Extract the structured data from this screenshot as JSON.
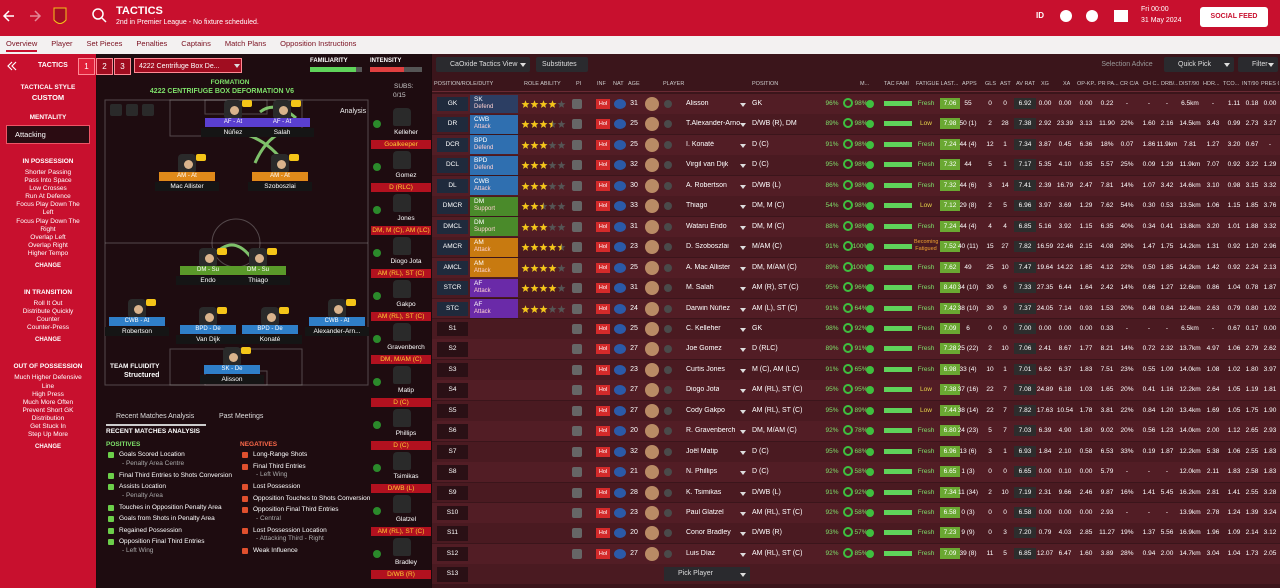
{
  "header": {
    "title": "TACTICS",
    "subtitle": "2nd in Premier League - No fixture scheduled.",
    "user": "ID",
    "time": "Fri 00:00",
    "date": "31 May 2024",
    "social": "SOCIAL FEED"
  },
  "nav": [
    "Overview",
    "Player",
    "Set Pieces",
    "Penalties",
    "Captains",
    "Match Plans",
    "Opposition Instructions"
  ],
  "sidebar": {
    "title": "TACTICS",
    "slots": [
      "1",
      "2",
      "3"
    ],
    "tactic": "4222 Centrifuge Box De...",
    "style_label": "TACTICAL STYLE",
    "style": "CUSTOM",
    "mentality_label": "MENTALITY",
    "mentality": "Attacking",
    "sections": [
      {
        "title": "IN POSSESSION",
        "items": [
          "Shorter Passing",
          "Pass Into Space",
          "Low Crosses",
          "Run At Defence",
          "Focus Play Down The Left",
          "Focus Play Down The Right",
          "Overlap Left",
          "Overlap Right",
          "Higher Tempo"
        ],
        "action": "CHANGE"
      },
      {
        "title": "IN TRANSITION",
        "items": [
          "Roll It Out",
          "Distribute Quickly",
          "Counter",
          "Counter-Press"
        ],
        "action": "CHANGE"
      },
      {
        "title": "OUT OF POSSESSION",
        "items": [
          "Much Higher Defensive Line",
          "High Press",
          "Much More Often",
          "Prevent Short GK Distribution",
          "Get Stuck In",
          "Step Up More"
        ],
        "action": "CHANGE"
      }
    ]
  },
  "formation": {
    "label": "FORMATION",
    "name": "4222 CENTRIFUGE BOX DEFORMATION V6",
    "familiarity": "FAMILIARITY",
    "intensity": "INTENSITY",
    "analysis": "Analysis",
    "fluidity_label": "TEAM FLUIDITY",
    "fluidity": "Structured",
    "players": [
      {
        "role": "AF - At",
        "name": "Núñez",
        "color": "#5a3fd0"
      },
      {
        "role": "AF - At",
        "name": "Salah",
        "color": "#5a3fd0"
      },
      {
        "role": "AM - At",
        "name": "Mac Allister",
        "color": "#e08a1a"
      },
      {
        "role": "AM - At",
        "name": "Szoboszlai",
        "color": "#e08a1a"
      },
      {
        "role": "DM - Su",
        "name": "Endo",
        "color": "#5a9a2a"
      },
      {
        "role": "DM - Su",
        "name": "Thiago",
        "color": "#5a9a2a"
      },
      {
        "role": "CWB - At",
        "name": "Robertson",
        "color": "#2f7fc8"
      },
      {
        "role": "BPD - De",
        "name": "Van Dijk",
        "color": "#2f7fc8"
      },
      {
        "role": "BPD - De",
        "name": "Konaté",
        "color": "#2f7fc8"
      },
      {
        "role": "CWB - At",
        "name": "Alexander-Arn...",
        "color": "#2f7fc8"
      },
      {
        "role": "SK - De",
        "name": "Alisson",
        "color": "#2f7fc8"
      }
    ]
  },
  "subs": {
    "label": "SUBS:",
    "count": "0/15",
    "players": [
      {
        "name": "Kelleher",
        "position": "Goalkeeper"
      },
      {
        "name": "Gomez",
        "position": "D (RLC)"
      },
      {
        "name": "Jones",
        "position": "DM, M (C), AM (LC)"
      },
      {
        "name": "Diogo Jota",
        "position": "AM (RL), ST (C)"
      },
      {
        "name": "Gakpo",
        "position": "AM (RL), ST (C)"
      },
      {
        "name": "Gravenberch",
        "position": "DM, M/AM (C)"
      },
      {
        "name": "Matip",
        "position": "D (C)"
      },
      {
        "name": "Phillips",
        "position": "D (C)"
      },
      {
        "name": "Tsimikas",
        "position": "D/WB (L)"
      },
      {
        "name": "Glatzel",
        "position": "AM (RL), ST (C)"
      },
      {
        "name": "Bradley",
        "position": "D/WB (R)"
      }
    ]
  },
  "analysis": {
    "tabs": [
      "Recent Matches Analysis",
      "Past Meetings"
    ],
    "heading": "RECENT MATCHES ANALYSIS",
    "positives_label": "POSITIVES",
    "negatives_label": "NEGATIVES",
    "positives": [
      {
        "text": "Goals Scored Location",
        "detail": "- Penalty Area Centre"
      },
      {
        "text": "Final Third Entries to Shots Conversion"
      },
      {
        "text": "Assists Location",
        "detail": "- Penalty Area"
      },
      {
        "text": "Touches in Opposition Penalty Area"
      },
      {
        "text": "Goals from Shots in Penalty Area"
      },
      {
        "text": "Regained Possession"
      },
      {
        "text": "Opposition Final Third Entries",
        "detail": "- Left Wing"
      }
    ],
    "negatives": [
      {
        "text": "Long-Range Shots"
      },
      {
        "text": "Final Third Entries",
        "detail": "- Left Wing"
      },
      {
        "text": "Lost Possession"
      },
      {
        "text": "Opposition Touches to Shots Conversion"
      },
      {
        "text": "Opposition Final Third Entries",
        "detail": "- Central"
      },
      {
        "text": "Lost Possession Location",
        "detail": "- Attacking Third - Right"
      },
      {
        "text": "Weak Influence"
      }
    ]
  },
  "toolbar": {
    "view": "CaOxide Tactics View",
    "subs": "Substitutes",
    "advice": "Selection Advice",
    "quick": "Quick Pick",
    "filter": "Filter"
  },
  "table": {
    "columns": [
      "POSITION/ROLE/DUTY",
      "ROLE ABILITY",
      "PI",
      "INF",
      "NAT",
      "AGE",
      "PLAYER",
      "POSITION",
      "M...",
      "TAC FAMI",
      "FATIGUE LAST...",
      "APPS",
      "GLS",
      "AST",
      "AV RAT",
      "XG",
      "XA",
      "OP-KP...",
      "PR PA...",
      "CR C/A",
      "CH C...",
      "DRB/...",
      "DIST/90",
      "HDR...",
      "TCO...",
      "INT/90",
      "PRES C..."
    ],
    "rows": [
      {
        "slot": "GK",
        "role": "SK",
        "duty": "Defend",
        "color": "#2c3e63",
        "stars": 4,
        "inf": "Hol",
        "age": 31,
        "name": "Alisson",
        "position": "GK",
        "cond": "96%",
        "sharp": "98%",
        "fatigue": "Fresh",
        "form": "7.06",
        "stats": [
          "55",
          "0",
          "0",
          "6.92",
          "0.00",
          "0.00",
          "0.00",
          "0.22",
          "-",
          "-",
          "-",
          "6.5km",
          "-",
          "1.11",
          "0.18",
          "0.00"
        ]
      },
      {
        "slot": "DR",
        "role": "CWB",
        "duty": "Attack",
        "color": "#2f6fb0",
        "stars": 3.5,
        "inf": "Hol",
        "age": 25,
        "name": "T.Alexander-Arnold",
        "position": "D/WB (R), DM",
        "cond": "89%",
        "sharp": "98%",
        "fatigue": "Low",
        "form": "7.98",
        "stats": [
          "50 (1)",
          "2",
          "28",
          "7.38",
          "2.92",
          "23.39",
          "3.13",
          "11.90",
          "22%",
          "1.60",
          "2.16",
          "14.5km",
          "3.43",
          "0.99",
          "2.73",
          "3.27"
        ]
      },
      {
        "slot": "DCR",
        "role": "BPD",
        "duty": "Defend",
        "color": "#2f6fb0",
        "stars": 3,
        "inf": "Hol",
        "age": 25,
        "name": "I. Konaté",
        "position": "D (C)",
        "cond": "91%",
        "sharp": "98%",
        "fatigue": "Fresh",
        "form": "7.24",
        "stats": [
          "44 (4)",
          "12",
          "1",
          "7.34",
          "3.87",
          "0.45",
          "6.36",
          "18%",
          "0.07",
          "1.86",
          "11.9km",
          "7.81",
          "1.27",
          "3.20",
          "0.67",
          "-"
        ]
      },
      {
        "slot": "DCL",
        "role": "BPD",
        "duty": "Defend",
        "color": "#2f6fb0",
        "stars": 3,
        "inf": "Hol",
        "age": 32,
        "name": "Virgil van Dijk",
        "position": "D (C)",
        "cond": "95%",
        "sharp": "98%",
        "fatigue": "Fresh",
        "form": "7.32",
        "stats": [
          "44",
          "5",
          "1",
          "7.17",
          "5.35",
          "4.10",
          "0.35",
          "5.57",
          "25%",
          "0.09",
          "1.29",
          "11.9km",
          "7.07",
          "0.92",
          "3.22",
          "1.29"
        ]
      },
      {
        "slot": "DL",
        "role": "CWB",
        "duty": "Attack",
        "color": "#2f6fb0",
        "stars": 3,
        "inf": "Hol",
        "age": 30,
        "name": "A. Robertson",
        "position": "D/WB (L)",
        "cond": "86%",
        "sharp": "98%",
        "fatigue": "Fresh",
        "form": "7.32",
        "stats": [
          "44 (6)",
          "3",
          "14",
          "7.41",
          "2.39",
          "16.79",
          "2.47",
          "7.81",
          "14%",
          "1.07",
          "3.42",
          "14.6km",
          "3.10",
          "0.98",
          "3.15",
          "3.32"
        ]
      },
      {
        "slot": "DMCR",
        "role": "DM",
        "duty": "Support",
        "color": "#4a8a2a",
        "stars": 2.5,
        "inf": "Hol",
        "age": 33,
        "name": "Thiago",
        "position": "DM, M (C)",
        "cond": "54%",
        "sharp": "98%",
        "fatigue": "Low",
        "form": "7.12",
        "stats": [
          "29 (8)",
          "2",
          "5",
          "6.96",
          "3.97",
          "3.69",
          "1.29",
          "7.62",
          "54%",
          "0.30",
          "0.53",
          "13.5km",
          "1.06",
          "1.15",
          "1.85",
          "3.76"
        ]
      },
      {
        "slot": "DMCL",
        "role": "DM",
        "duty": "Support",
        "color": "#4a8a2a",
        "stars": 3,
        "inf": "Hol",
        "age": 31,
        "name": "Wataru Endo",
        "position": "DM, M (C)",
        "cond": "88%",
        "sharp": "98%",
        "fatigue": "Fresh",
        "form": "7.24",
        "stats": [
          "44 (4)",
          "4",
          "4",
          "6.85",
          "5.16",
          "3.92",
          "1.15",
          "6.35",
          "40%",
          "0.34",
          "0.41",
          "13.8km",
          "3.20",
          "1.01",
          "1.88",
          "3.32"
        ]
      },
      {
        "slot": "AMCR",
        "role": "AM",
        "duty": "Attack",
        "color": "#c87a10",
        "stars": 4.5,
        "inf": "Hol",
        "age": 23,
        "name": "D. Szoboszlai",
        "position": "M/AM (C)",
        "cond": "91%",
        "sharp": "100%",
        "fatigue": "Becoming Fatigued",
        "form": "7.52",
        "stats": [
          "40 (11)",
          "15",
          "27",
          "7.82",
          "16.59",
          "22.46",
          "2.15",
          "4.08",
          "29%",
          "1.47",
          "1.75",
          "14.2km",
          "1.31",
          "0.92",
          "1.20",
          "2.96"
        ]
      },
      {
        "slot": "AMCL",
        "role": "AM",
        "duty": "Attack",
        "color": "#c87a10",
        "stars": 4,
        "inf": "Hol",
        "age": 25,
        "name": "A. Mac Allister",
        "position": "DM, M/AM (C)",
        "cond": "89%",
        "sharp": "100%",
        "fatigue": "Fresh",
        "form": "7.62",
        "stats": [
          "49",
          "25",
          "10",
          "7.47",
          "19.64",
          "14.22",
          "1.85",
          "4.12",
          "22%",
          "0.50",
          "1.85",
          "14.2km",
          "1.42",
          "0.92",
          "2.24",
          "2.13"
        ]
      },
      {
        "slot": "STCR",
        "role": "AF",
        "duty": "Attack",
        "color": "#6a2aa8",
        "stars": 4,
        "inf": "Hol",
        "age": 31,
        "name": "M. Salah",
        "position": "AM (R), ST (C)",
        "cond": "95%",
        "sharp": "96%",
        "fatigue": "Fresh",
        "form": "8.40",
        "stats": [
          "34 (10)",
          "30",
          "6",
          "7.33",
          "27.35",
          "6.44",
          "1.64",
          "2.42",
          "14%",
          "0.66",
          "1.27",
          "12.6km",
          "0.86",
          "1.04",
          "0.78",
          "1.87"
        ]
      },
      {
        "slot": "STC",
        "role": "AF",
        "duty": "Attack",
        "color": "#6a2aa8",
        "stars": 3,
        "inf": "Hol",
        "age": 24,
        "name": "Darwin Núñez",
        "position": "AM (L), ST (C)",
        "cond": "91%",
        "sharp": "64%",
        "fatigue": "Fresh",
        "form": "7.42",
        "stats": [
          "38 (10)",
          "30",
          "9",
          "7.37",
          "24.05",
          "7.14",
          "0.93",
          "1.53",
          "20%",
          "0.48",
          "0.84",
          "12.4km",
          "2.63",
          "0.79",
          "0.80",
          "1.02"
        ]
      },
      {
        "slot": "S1",
        "inf": "Hol",
        "age": 25,
        "name": "C. Kelleher",
        "position": "GK",
        "cond": "98%",
        "sharp": "92%",
        "fatigue": "Fresh",
        "form": "7.09",
        "stats": [
          "6",
          "0",
          "0",
          "7.00",
          "0.00",
          "0.00",
          "0.00",
          "0.33",
          "-",
          "-",
          "-",
          "6.5km",
          "-",
          "0.67",
          "0.17",
          "0.00"
        ]
      },
      {
        "slot": "S2",
        "inf": "Hol",
        "age": 27,
        "name": "Joe Gomez",
        "position": "D (RLC)",
        "cond": "89%",
        "sharp": "91%",
        "fatigue": "Fresh",
        "form": "7.28",
        "stats": [
          "25 (22)",
          "2",
          "10",
          "7.06",
          "2.41",
          "8.67",
          "1.77",
          "8.21",
          "14%",
          "0.72",
          "2.32",
          "13.7km",
          "4.97",
          "1.06",
          "2.79",
          "2.62"
        ]
      },
      {
        "slot": "S3",
        "inf": "Hol",
        "age": 23,
        "name": "Curtis Jones",
        "position": "M (C), AM (LC)",
        "cond": "91%",
        "sharp": "65%",
        "fatigue": "Fresh",
        "form": "6.98",
        "stats": [
          "33 (4)",
          "10",
          "1",
          "7.01",
          "6.62",
          "6.37",
          "1.83",
          "7.51",
          "23%",
          "0.55",
          "1.09",
          "14.0km",
          "1.08",
          "1.02",
          "1.80",
          "3.97"
        ]
      },
      {
        "slot": "S4",
        "inf": "Hol",
        "age": 27,
        "name": "Diogo Jota",
        "position": "AM (RL), ST (C)",
        "cond": "95%",
        "sharp": "95%",
        "fatigue": "Low",
        "form": "7.38",
        "stats": [
          "37 (16)",
          "22",
          "7",
          "7.08",
          "24.89",
          "6.18",
          "1.03",
          "1.65",
          "20%",
          "0.41",
          "1.16",
          "12.2km",
          "2.64",
          "1.05",
          "1.19",
          "1.81"
        ]
      },
      {
        "slot": "S5",
        "inf": "Hol",
        "age": 27,
        "name": "Cody Gakpo",
        "position": "AM (RL), ST (C)",
        "cond": "95%",
        "sharp": "89%",
        "fatigue": "Low",
        "form": "7.44",
        "stats": [
          "38 (14)",
          "22",
          "7",
          "7.82",
          "17.63",
          "10.54",
          "1.78",
          "3.81",
          "22%",
          "0.84",
          "1.20",
          "13.4km",
          "1.69",
          "1.05",
          "1.75",
          "1.90"
        ]
      },
      {
        "slot": "S6",
        "inf": "Hol",
        "age": 20,
        "name": "R. Gravenberch",
        "position": "DM, M/AM (C)",
        "cond": "92%",
        "sharp": "78%",
        "fatigue": "Fresh",
        "form": "6.80",
        "stats": [
          "24 (23)",
          "5",
          "7",
          "7.03",
          "6.39",
          "4.90",
          "1.80",
          "9.02",
          "20%",
          "0.56",
          "1.23",
          "14.0km",
          "2.00",
          "1.12",
          "2.65",
          "2.93"
        ]
      },
      {
        "slot": "S7",
        "inf": "Hol",
        "age": 32,
        "name": "Joël Matip",
        "position": "D (C)",
        "cond": "95%",
        "sharp": "68%",
        "fatigue": "Fresh",
        "form": "6.96",
        "stats": [
          "13 (6)",
          "3",
          "1",
          "6.93",
          "1.84",
          "2.10",
          "0.58",
          "6.53",
          "33%",
          "0.19",
          "1.87",
          "12.2km",
          "5.38",
          "1.06",
          "2.55",
          "1.83"
        ]
      },
      {
        "slot": "S8",
        "inf": "Hol",
        "age": 21,
        "name": "N. Phillips",
        "position": "D (C)",
        "cond": "92%",
        "sharp": "58%",
        "fatigue": "Fresh",
        "form": "6.65",
        "stats": [
          "1 (3)",
          "0",
          "0",
          "6.65",
          "0.00",
          "0.10",
          "0.00",
          "5.79",
          "-",
          "-",
          "-",
          "12.0km",
          "2.11",
          "1.83",
          "2.58",
          "1.83"
        ]
      },
      {
        "slot": "S9",
        "inf": "Hol",
        "age": 28,
        "name": "K. Tsimikas",
        "position": "D/WB (L)",
        "cond": "91%",
        "sharp": "92%",
        "fatigue": "Fresh",
        "form": "7.34",
        "stats": [
          "11 (34)",
          "2",
          "10",
          "7.19",
          "2.31",
          "9.66",
          "2.46",
          "9.87",
          "16%",
          "1.41",
          "5.45",
          "16.2km",
          "2.81",
          "1.41",
          "2.55",
          "3.28"
        ]
      },
      {
        "slot": "S10",
        "inf": "Hol",
        "age": 23,
        "name": "Paul Glatzel",
        "position": "AM (RL), ST (C)",
        "cond": "92%",
        "sharp": "58%",
        "fatigue": "Fresh",
        "form": "6.58",
        "stats": [
          "0 (3)",
          "0",
          "0",
          "6.58",
          "0.00",
          "0.00",
          "0.00",
          "2.93",
          "-",
          "-",
          "-",
          "13.9km",
          "2.78",
          "1.24",
          "1.39",
          "3.24"
        ]
      },
      {
        "slot": "S11",
        "inf": "Hol",
        "age": 20,
        "name": "Conor Bradley",
        "position": "D/WB (R)",
        "cond": "93%",
        "sharp": "57%",
        "fatigue": "Fresh",
        "form": "7.23",
        "stats": [
          "9 (9)",
          "0",
          "3",
          "7.20",
          "0.79",
          "4.03",
          "2.85",
          "11.27",
          "19%",
          "1.37",
          "5.56",
          "16.9km",
          "1.96",
          "1.09",
          "2.14",
          "3.12"
        ]
      },
      {
        "slot": "S12",
        "inf": "Hol",
        "age": 27,
        "name": "Luis Díaz",
        "position": "AM (RL), ST (C)",
        "cond": "92%",
        "sharp": "85%",
        "fatigue": "Fresh",
        "form": "7.09",
        "stats": [
          "39 (8)",
          "11",
          "5",
          "6.85",
          "12.07",
          "6.47",
          "1.60",
          "3.89",
          "28%",
          "0.94",
          "2.00",
          "14.7km",
          "3.04",
          "1.04",
          "1.73",
          "2.05"
        ]
      },
      {
        "slot": "S13",
        "name": "Pick Player"
      }
    ]
  }
}
